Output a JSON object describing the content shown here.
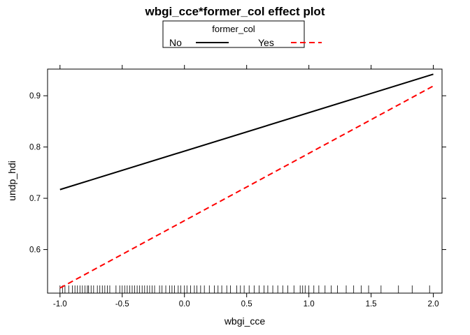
{
  "chart_data": {
    "type": "line",
    "title": "wbgi_cce*former_col effect plot",
    "xlabel": "wbgi_cce",
    "ylabel": "undp_hdi",
    "xlim": [
      -1.1,
      2.07
    ],
    "ylim": [
      0.515,
      0.952
    ],
    "x_ticks": [
      -1.0,
      -0.5,
      0.0,
      0.5,
      1.0,
      1.5,
      2.0
    ],
    "x_tick_labels": [
      "-1.0",
      "-0.5",
      "0.0",
      "0.5",
      "1.0",
      "1.5",
      "2.0"
    ],
    "y_ticks": [
      0.6,
      0.7,
      0.8,
      0.9
    ],
    "y_tick_labels": [
      "0.6",
      "0.7",
      "0.8",
      "0.9"
    ],
    "legend": {
      "title": "former_col",
      "placement": "top-center",
      "entries": [
        {
          "label": "No",
          "color": "#000000",
          "dash": "solid"
        },
        {
          "label": "Yes",
          "color": "#ff0000",
          "dash": "dashed"
        }
      ]
    },
    "series": [
      {
        "name": "No",
        "x": [
          -1.0,
          2.0
        ],
        "y": [
          0.717,
          0.942
        ],
        "color": "#000000",
        "dash": "solid"
      },
      {
        "name": "Yes",
        "x": [
          -1.0,
          2.0
        ],
        "y": [
          0.525,
          0.919
        ],
        "color": "#ff0000",
        "dash": "dashed"
      }
    ],
    "rug": [
      -1.0,
      -0.98,
      -0.96,
      -0.93,
      -0.9,
      -0.88,
      -0.86,
      -0.84,
      -0.82,
      -0.8,
      -0.78,
      -0.77,
      -0.75,
      -0.73,
      -0.7,
      -0.68,
      -0.66,
      -0.64,
      -0.62,
      -0.6,
      -0.55,
      -0.52,
      -0.5,
      -0.48,
      -0.46,
      -0.44,
      -0.42,
      -0.4,
      -0.38,
      -0.36,
      -0.34,
      -0.32,
      -0.3,
      -0.28,
      -0.26,
      -0.24,
      -0.2,
      -0.18,
      -0.15,
      -0.12,
      -0.1,
      -0.08,
      -0.05,
      -0.03,
      0.0,
      0.02,
      0.05,
      0.08,
      0.1,
      0.13,
      0.16,
      0.2,
      0.24,
      0.27,
      0.3,
      0.34,
      0.37,
      0.42,
      0.45,
      0.48,
      0.52,
      0.56,
      0.6,
      0.64,
      0.67,
      0.71,
      0.75,
      0.79,
      0.83,
      0.88,
      0.93,
      0.95,
      0.97,
      1.0,
      1.04,
      1.08,
      1.13,
      1.18,
      1.23,
      1.3,
      1.36,
      1.42,
      1.48,
      1.58,
      1.72,
      1.83,
      1.97
    ]
  }
}
